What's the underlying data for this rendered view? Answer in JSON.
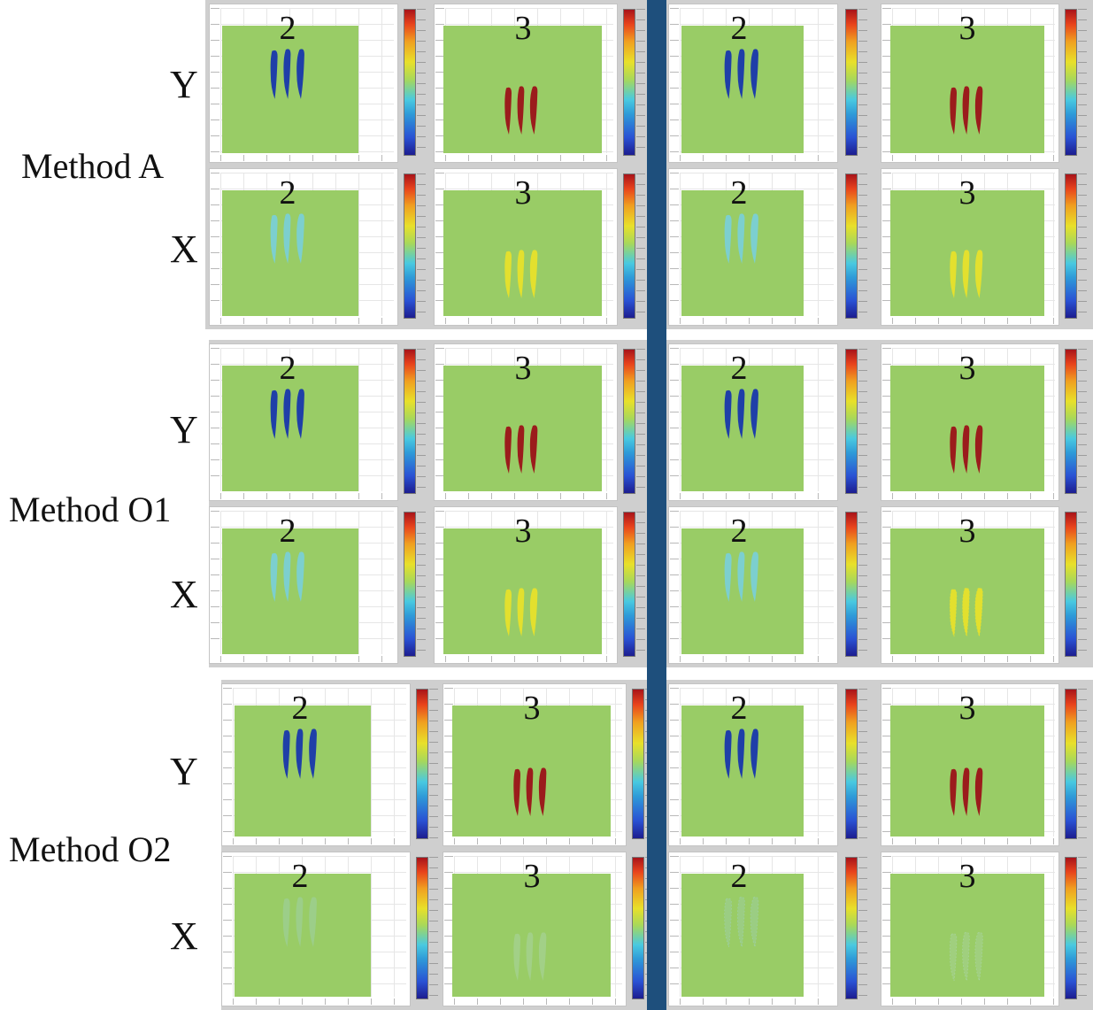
{
  "methods": [
    {
      "label": "Method A",
      "rows": [
        {
          "axis": "Y"
        },
        {
          "axis": "X"
        }
      ]
    },
    {
      "label": "Method O1",
      "rows": [
        {
          "axis": "Y"
        },
        {
          "axis": "X"
        }
      ]
    },
    {
      "label": "Method O2",
      "rows": [
        {
          "axis": "Y"
        },
        {
          "axis": "X"
        }
      ]
    }
  ],
  "panel_numbers": [
    "2",
    "3"
  ],
  "colors": {
    "plate": "#99cc66",
    "divider": "#1e4f7c",
    "Y_2": "#1f3fa8",
    "Y_3": "#9b1c1c",
    "X_2": "#7ccfcf",
    "X_3": "#e3e02e",
    "O2_X_2": "#9ecfa6",
    "O2_X_3": "#a9d4a2"
  },
  "colorbar_scale": "jet"
}
